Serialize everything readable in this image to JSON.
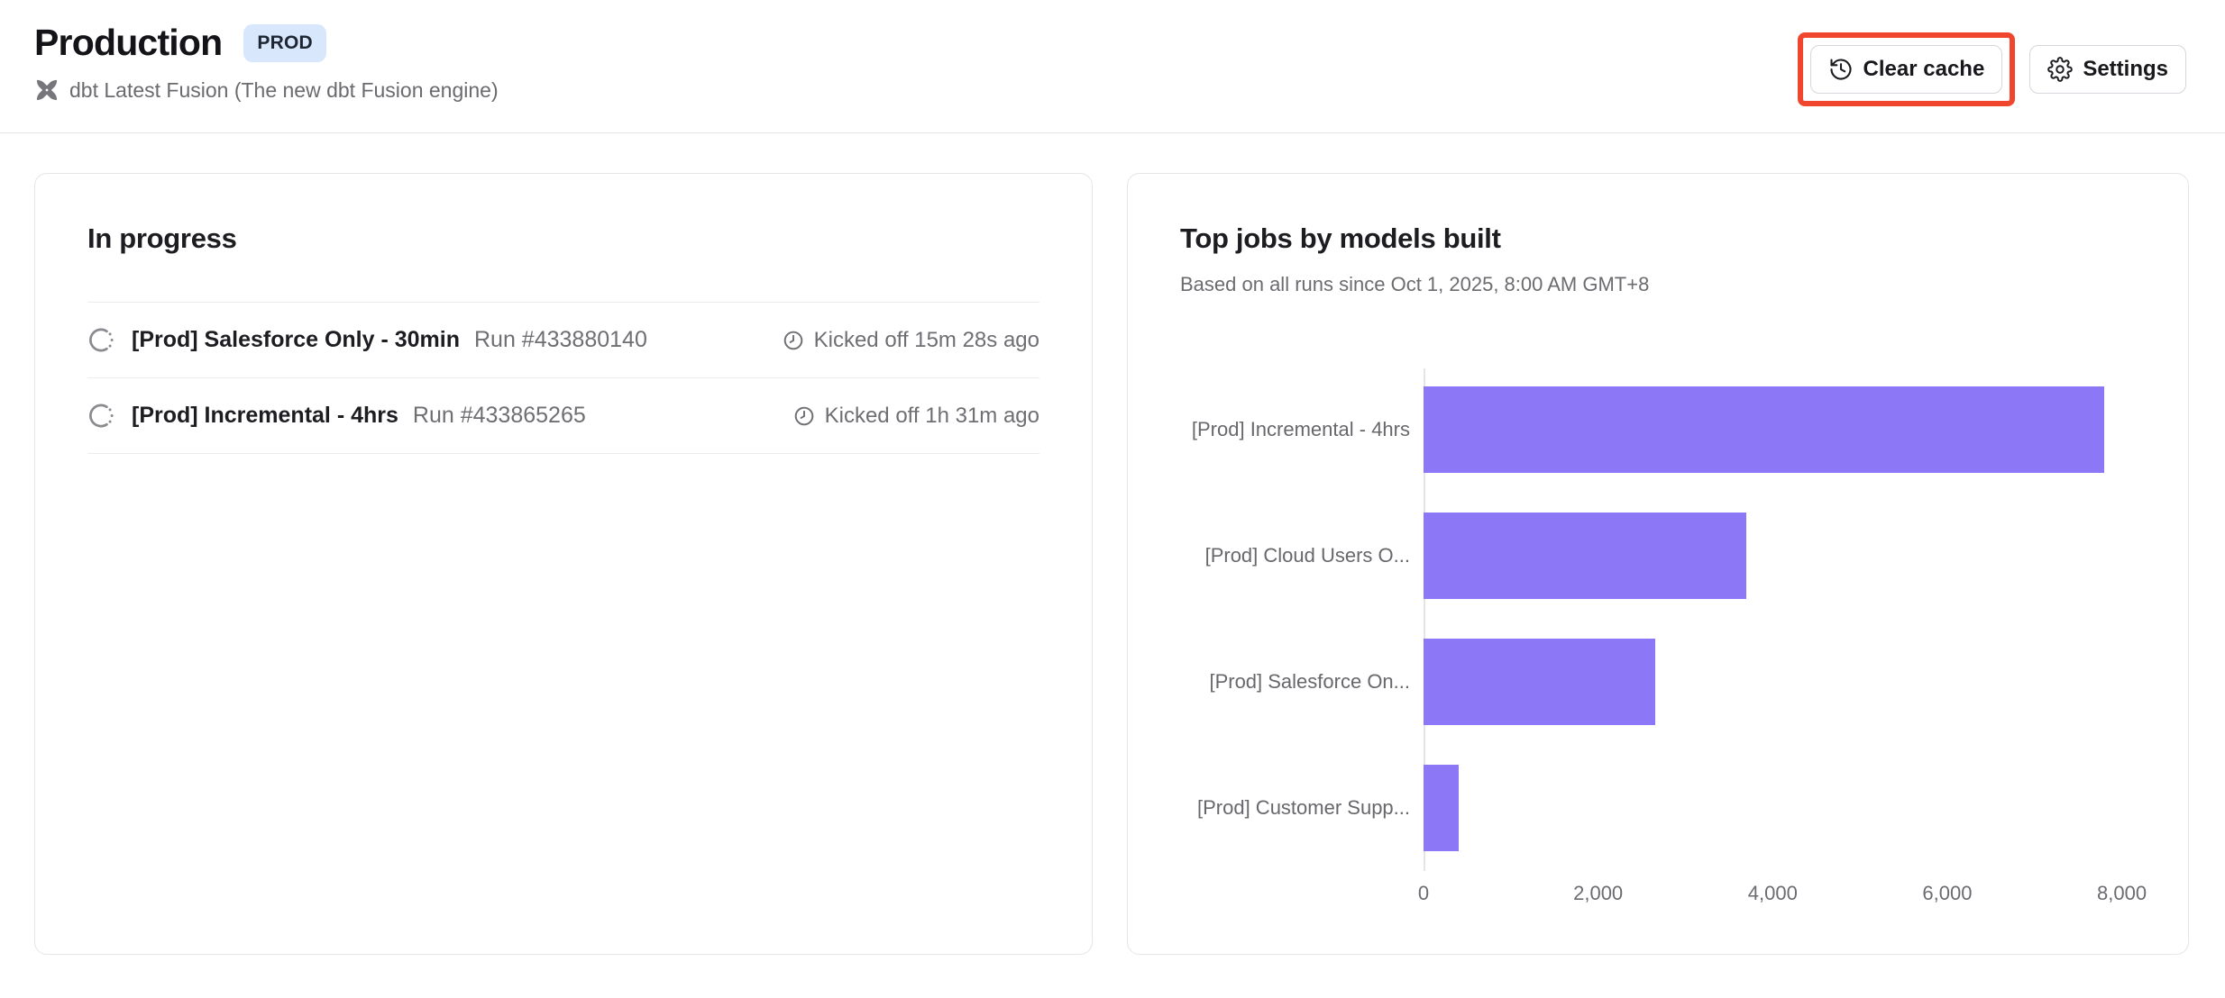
{
  "header": {
    "title": "Production",
    "badge": "PROD",
    "subtitle": "dbt Latest Fusion (The new dbt Fusion engine)",
    "actions": {
      "clear_cache": "Clear cache",
      "settings": "Settings"
    }
  },
  "in_progress": {
    "title": "In progress",
    "runs": [
      {
        "job": "[Prod] Salesforce Only - 30min",
        "run": "Run #433880140",
        "kicked_off": "Kicked off 15m 28s ago"
      },
      {
        "job": "[Prod] Incremental - 4hrs",
        "run": "Run #433865265",
        "kicked_off": "Kicked off 1h 31m ago"
      }
    ]
  },
  "top_jobs": {
    "title": "Top jobs by models built",
    "subtitle": "Based on all runs since Oct 1, 2025, 8:00 AM GMT+8"
  },
  "chart_data": {
    "type": "bar",
    "orientation": "horizontal",
    "title": "Top jobs by models built",
    "categories": [
      "[Prod] Incremental - 4hrs",
      "[Prod] Cloud Users O...",
      "[Prod] Salesforce On...",
      "[Prod] Customer Supp..."
    ],
    "values": [
      7800,
      3700,
      2650,
      400
    ],
    "xlabel": "",
    "ylabel": "",
    "xlim": [
      0,
      8180
    ],
    "xticks": [
      0,
      2000,
      4000,
      6000,
      8000
    ],
    "xtick_labels": [
      "0",
      "2,000",
      "4,000",
      "6,000",
      "8,000"
    ],
    "grid": false,
    "legend": false,
    "bar_color": "#8C78F7"
  },
  "colors": {
    "bar_purple": "#8C78F7",
    "badge_bg": "#D8E7FB",
    "annotation_red": "#F0462D"
  }
}
